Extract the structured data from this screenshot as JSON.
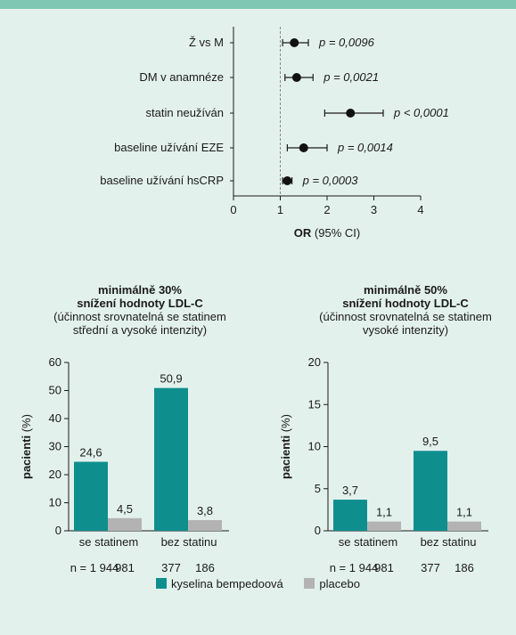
{
  "colors": {
    "bemp": "#0e8f8e",
    "placebo": "#b3b3b3",
    "marker": "#111111",
    "bg": "#e3f1ed",
    "topbar": "#7fc7b3"
  },
  "chart_data": [
    {
      "type": "scatter",
      "subtype": "forest",
      "categories": [
        "Ž vs M",
        "DM v anamnéze",
        "statin neužíván",
        "baseline užívání EZE",
        "baseline užívání hsCRP"
      ],
      "or": [
        1.3,
        1.35,
        2.5,
        1.5,
        1.15
      ],
      "ci_low": [
        1.05,
        1.1,
        1.95,
        1.15,
        1.05
      ],
      "ci_high": [
        1.6,
        1.7,
        3.2,
        2.0,
        1.25
      ],
      "p_labels": [
        "p = 0,0096",
        "p = 0,0021",
        "p < 0,0001",
        "p = 0,0014",
        "p = 0,0003"
      ],
      "xlim": [
        0,
        4
      ],
      "xticks": [
        "0",
        "1",
        "2",
        "3",
        "4"
      ],
      "reference_line": 1,
      "xlabel_bold": "OR",
      "xlabel_rest": " (95% CI)"
    },
    {
      "type": "bar",
      "title_bold_1": "minimálně 30%",
      "title_bold_2": "snížení hodnoty LDL-C",
      "subtitle_1": "(účinnost srovnatelná se statinem",
      "subtitle_2": "střední a vysoké intenzity)",
      "ylabel_bold": "pacienti",
      "ylabel_rest": " (%)",
      "ylim": [
        0,
        60
      ],
      "yticks": [
        "0",
        "10",
        "20",
        "30",
        "40",
        "50",
        "60"
      ],
      "categories": [
        "se statinem",
        "bez statinu"
      ],
      "series": [
        {
          "name": "kyselina bempedoová",
          "values": [
            24.6,
            50.9
          ],
          "labels": [
            "24,6",
            "50,9"
          ]
        },
        {
          "name": "placebo",
          "values": [
            4.5,
            3.8
          ],
          "labels": [
            "4,5",
            "3,8"
          ]
        }
      ],
      "n_prefix": "n = ",
      "n_values": [
        [
          "1 944",
          "981"
        ],
        [
          "377",
          "186"
        ]
      ]
    },
    {
      "type": "bar",
      "title_bold_1": "minimálně 50%",
      "title_bold_2": "snížení hodnoty LDL-C",
      "subtitle_1": "(účinnost srovnatelná se statinem",
      "subtitle_2": "vysoké intenzity)",
      "ylabel_bold": "pacienti",
      "ylabel_rest": " (%)",
      "ylim": [
        0,
        20
      ],
      "yticks": [
        "0",
        "5",
        "10",
        "15",
        "20"
      ],
      "categories": [
        "se statinem",
        "bez statinu"
      ],
      "series": [
        {
          "name": "kyselina bempedoová",
          "values": [
            3.7,
            9.5
          ],
          "labels": [
            "3,7",
            "9,5"
          ]
        },
        {
          "name": "placebo",
          "values": [
            1.1,
            1.1
          ],
          "labels": [
            "1,1",
            "1,1"
          ]
        }
      ],
      "n_prefix": "n = ",
      "n_values": [
        [
          "1 944",
          "981"
        ],
        [
          "377",
          "186"
        ]
      ]
    }
  ],
  "legend": {
    "bemp": "kyselina bempedoová",
    "placebo": "placebo"
  }
}
